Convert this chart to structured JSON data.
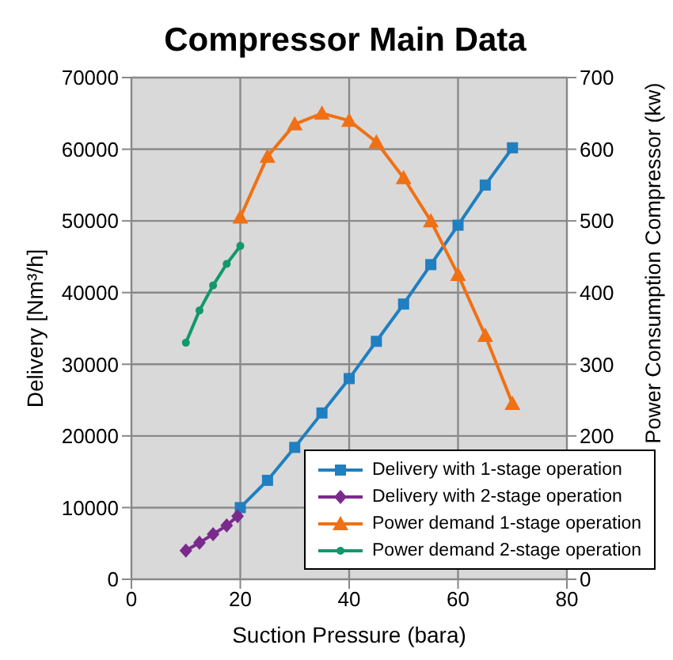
{
  "chart_data": {
    "type": "line",
    "title": "Compressor Main Data",
    "xlabel": "Suction Pressure (bara)",
    "ylabel": "Delivery [Nm³/h]",
    "y2label": "Power Consumption Compressor (kw)",
    "xlim": [
      0,
      80
    ],
    "xticks": [
      0,
      20,
      40,
      60,
      80
    ],
    "ylim": [
      0,
      70000
    ],
    "yticks": [
      0,
      10000,
      20000,
      30000,
      40000,
      50000,
      60000,
      70000
    ],
    "y2lim": [
      0,
      700
    ],
    "y2ticks": [
      0,
      200,
      300,
      400,
      500,
      600,
      700
    ],
    "grid": true,
    "legend": "bottom right",
    "series": [
      {
        "name": "Delivery with 1-stage operation",
        "color": "#1f7fc0",
        "marker": "square",
        "x": [
          20,
          25,
          30,
          35,
          40,
          45,
          50,
          55,
          60,
          65,
          70
        ],
        "values": [
          10000,
          13800,
          18400,
          23200,
          28000,
          33200,
          38400,
          43900,
          49400,
          55000,
          60200
        ]
      },
      {
        "name": "Delivery with 2-stage operation",
        "color": "#7a2a8c",
        "marker": "diamond",
        "x": [
          10,
          12.5,
          15,
          17.5,
          19.5
        ],
        "values": [
          4000,
          5100,
          6300,
          7500,
          8800
        ]
      },
      {
        "name": "Power demand 1-stage operation",
        "color": "#f07014",
        "marker": "triangle",
        "axis": "y2",
        "x": [
          20,
          25,
          30,
          35,
          40,
          45,
          50,
          55,
          60,
          65,
          70
        ],
        "values": [
          505,
          590,
          635,
          650,
          640,
          610,
          560,
          500,
          425,
          340,
          245
        ]
      },
      {
        "name": "Power demand 2-stage operation",
        "color": "#12986a",
        "marker": "circle",
        "axis": "y2",
        "x": [
          10,
          12.5,
          15,
          17.5,
          20
        ],
        "values": [
          330,
          375,
          410,
          440,
          465
        ]
      }
    ]
  }
}
